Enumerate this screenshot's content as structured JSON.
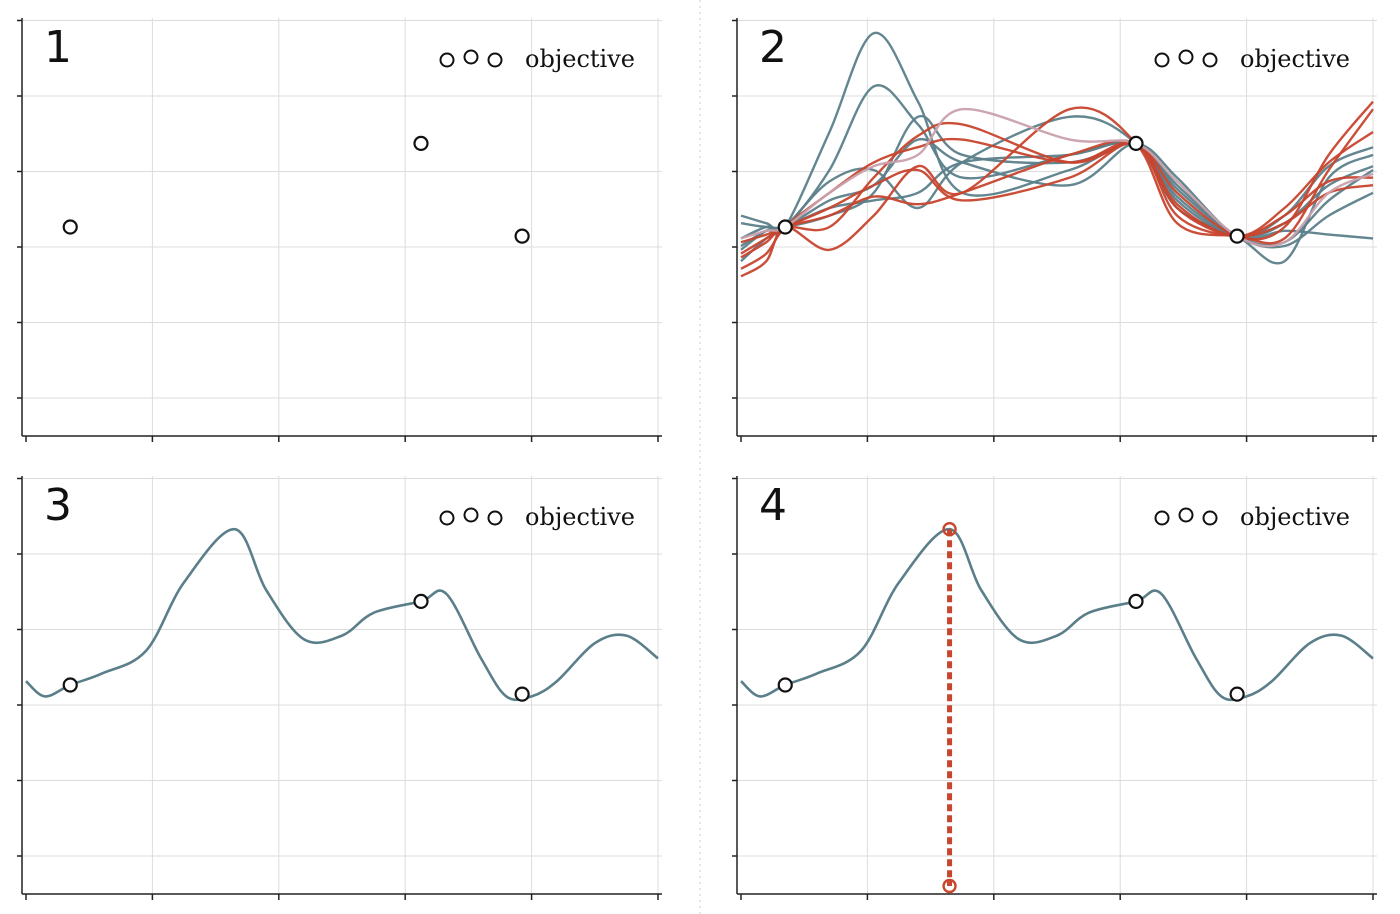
{
  "chart_data": [
    {
      "panel": "1",
      "type": "scatter",
      "legend": {
        "label": "objective",
        "position": "top-right"
      },
      "grid": true,
      "xlim": [
        0,
        1
      ],
      "ylim": [
        -2,
        3.5
      ],
      "points": [
        {
          "x": 0.07,
          "y": 0.75
        },
        {
          "x": 0.625,
          "y": 1.85
        },
        {
          "x": 0.785,
          "y": 0.63
        }
      ]
    },
    {
      "panel": "2",
      "type": "line",
      "legend": {
        "label": "objective",
        "position": "top-right"
      },
      "grid": true,
      "xlim": [
        0,
        1
      ],
      "ylim": [
        -2,
        3.5
      ],
      "points": [
        {
          "x": 0.07,
          "y": 0.75
        },
        {
          "x": 0.625,
          "y": 1.85
        },
        {
          "x": 0.785,
          "y": 0.63
        }
      ],
      "sample_curves": [
        {
          "color": "#5b7f8a",
          "y": [
            0.5,
            0.7,
            0.75,
            2.0,
            3.3,
            2.4,
            1.2,
            1.5,
            1.85,
            1.1,
            0.63,
            0.9,
            1.55,
            1.8
          ]
        },
        {
          "color": "#5b7f8a",
          "y": [
            0.9,
            0.8,
            0.75,
            1.5,
            2.6,
            2.1,
            1.4,
            1.7,
            1.85,
            1.3,
            0.63,
            0.5,
            0.9,
            1.2
          ]
        },
        {
          "color": "#5b7f8a",
          "y": [
            0.8,
            0.75,
            0.75,
            0.9,
            1.2,
            2.2,
            1.7,
            1.6,
            1.85,
            1.4,
            0.63,
            0.7,
            0.65,
            0.6
          ]
        },
        {
          "color": "#5b7f8a",
          "y": [
            0.3,
            0.6,
            0.75,
            1.35,
            1.5,
            1.0,
            1.6,
            2.2,
            1.85,
            1.0,
            0.63,
            0.3,
            1.4,
            1.7
          ]
        },
        {
          "color": "#5b7f8a",
          "y": [
            0.6,
            0.75,
            0.75,
            1.1,
            1.3,
            1.9,
            1.6,
            1.3,
            1.85,
            1.25,
            0.63,
            0.55,
            1.1,
            1.5
          ]
        },
        {
          "color": "#5b7f8a",
          "y": [
            0.45,
            0.7,
            0.75,
            1.0,
            1.1,
            1.2,
            1.6,
            1.7,
            1.85,
            1.15,
            0.63,
            0.8,
            1.3,
            1.55
          ]
        },
        {
          "color": "#c8452e",
          "y": [
            0.2,
            0.4,
            0.75,
            1.2,
            1.6,
            1.8,
            1.9,
            1.6,
            1.85,
            0.9,
            0.63,
            0.8,
            1.2,
            1.3
          ]
        },
        {
          "color": "#c8452e",
          "y": [
            0.4,
            0.6,
            0.75,
            0.9,
            1.15,
            1.05,
            1.2,
            1.7,
            1.85,
            1.05,
            0.63,
            1.0,
            1.6,
            2.0
          ]
        },
        {
          "color": "#c8452e",
          "y": [
            0.1,
            0.3,
            0.75,
            0.45,
            0.9,
            1.55,
            1.2,
            2.3,
            1.85,
            0.8,
            0.63,
            0.6,
            1.5,
            2.3
          ]
        },
        {
          "color": "#c8452e",
          "y": [
            0.35,
            0.55,
            0.75,
            0.75,
            1.4,
            1.95,
            2.1,
            1.6,
            1.85,
            1.2,
            0.63,
            0.75,
            1.7,
            2.4
          ]
        },
        {
          "color": "#c8452e",
          "y": [
            0.55,
            0.65,
            0.75,
            1.0,
            1.3,
            1.5,
            1.1,
            1.4,
            1.85,
            1.0,
            0.63,
            0.9,
            1.35,
            1.4
          ]
        },
        {
          "color": "#c9a0ac",
          "y": [
            0.6,
            0.7,
            0.75,
            1.2,
            1.55,
            1.7,
            2.3,
            1.9,
            1.85,
            1.35,
            0.63,
            0.55,
            1.2,
            1.45
          ]
        }
      ],
      "sample_x": [
        0.0,
        0.04,
        0.07,
        0.14,
        0.21,
        0.28,
        0.35,
        0.52,
        0.625,
        0.69,
        0.785,
        0.86,
        0.93,
        1.0
      ]
    },
    {
      "panel": "3",
      "type": "line",
      "legend": {
        "label": "objective",
        "position": "top-right"
      },
      "grid": true,
      "xlim": [
        0,
        1
      ],
      "ylim": [
        -2,
        3.5
      ],
      "points": [
        {
          "x": 0.07,
          "y": 0.75
        },
        {
          "x": 0.625,
          "y": 1.85
        },
        {
          "x": 0.785,
          "y": 0.63
        }
      ],
      "curve": {
        "color": "#5b7f8a",
        "x": [
          0.0,
          0.03,
          0.07,
          0.12,
          0.19,
          0.25,
          0.33,
          0.38,
          0.44,
          0.5,
          0.55,
          0.625,
          0.665,
          0.72,
          0.76,
          0.8,
          0.84,
          0.9,
          0.95,
          1.0
        ],
        "y": [
          0.8,
          0.6,
          0.75,
          0.9,
          1.2,
          2.1,
          2.8,
          2.0,
          1.35,
          1.4,
          1.7,
          1.85,
          1.95,
          1.1,
          0.6,
          0.6,
          0.8,
          1.3,
          1.4,
          1.1
        ]
      }
    },
    {
      "panel": "4",
      "type": "line",
      "legend": {
        "label": "objective",
        "position": "top-right"
      },
      "grid": true,
      "xlim": [
        0,
        1
      ],
      "ylim": [
        -2,
        3.5
      ],
      "points": [
        {
          "x": 0.07,
          "y": 0.75
        },
        {
          "x": 0.625,
          "y": 1.85
        },
        {
          "x": 0.785,
          "y": 0.63
        }
      ],
      "curve": {
        "color": "#5b7f8a",
        "x": [
          0.0,
          0.03,
          0.07,
          0.12,
          0.19,
          0.25,
          0.33,
          0.38,
          0.44,
          0.5,
          0.55,
          0.625,
          0.665,
          0.72,
          0.76,
          0.8,
          0.84,
          0.9,
          0.95,
          1.0
        ],
        "y": [
          0.8,
          0.6,
          0.75,
          0.9,
          1.2,
          2.1,
          2.8,
          2.0,
          1.35,
          1.4,
          1.7,
          1.85,
          1.95,
          1.1,
          0.6,
          0.6,
          0.8,
          1.3,
          1.4,
          1.1
        ]
      },
      "proposal": {
        "x": 0.33,
        "y_top": 2.8,
        "y_bottom": -2.0,
        "color": "#c8452e"
      }
    }
  ]
}
